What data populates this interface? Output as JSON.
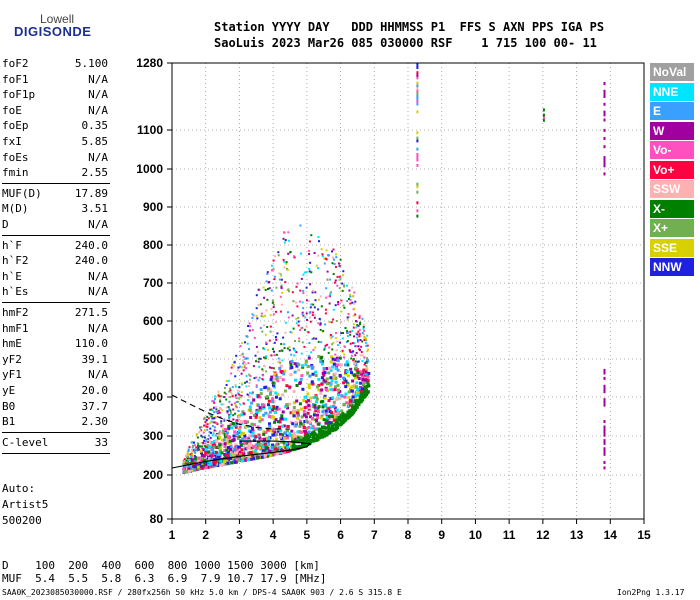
{
  "logo": {
    "line1": "Lowell",
    "line2": "DIGISONDE"
  },
  "header": {
    "line1": "Station YYYY DAY   DDD HHMMSS P1  FFS S AXN PPS IGA PS",
    "line2": "SaoLuis 2023 Mar26 085 030000 RSF    1 715 100 00- 11"
  },
  "params": [
    {
      "name": "foF2",
      "value": "5.100"
    },
    {
      "name": "foF1",
      "value": "N/A"
    },
    {
      "name": "foF1p",
      "value": "N/A"
    },
    {
      "name": "foE",
      "value": "N/A"
    },
    {
      "name": "foEp",
      "value": "0.35"
    },
    {
      "name": "fxI",
      "value": "5.85"
    },
    {
      "name": "foEs",
      "value": "N/A"
    },
    {
      "name": "fmin",
      "value": "2.55"
    },
    {
      "name": "MUF(D)",
      "value": "17.89"
    },
    {
      "name": "M(D)",
      "value": "3.51"
    },
    {
      "name": "D",
      "value": "N/A"
    },
    {
      "name": "h`F",
      "value": "240.0"
    },
    {
      "name": "h`F2",
      "value": "240.0"
    },
    {
      "name": "h`E",
      "value": "N/A"
    },
    {
      "name": "h`Es",
      "value": "N/A"
    },
    {
      "name": "hmF2",
      "value": "271.5"
    },
    {
      "name": "hmF1",
      "value": "N/A"
    },
    {
      "name": "hmE",
      "value": "110.0"
    },
    {
      "name": "yF2",
      "value": "39.1"
    },
    {
      "name": "yF1",
      "value": "N/A"
    },
    {
      "name": "yE",
      "value": "20.0"
    },
    {
      "name": "B0",
      "value": "37.7"
    },
    {
      "name": "B1",
      "value": "2.30"
    },
    {
      "name": "C-level",
      "value": "33"
    }
  ],
  "auto": {
    "line1": "Auto:",
    "line2": "Artist5",
    "line3": "500200"
  },
  "legend": [
    {
      "label": "NoVal",
      "color": "#a0a0a0"
    },
    {
      "label": "NNE",
      "color": "#00e5ff"
    },
    {
      "label": "E",
      "color": "#3aa0ff"
    },
    {
      "label": "W",
      "color": "#a000a0"
    },
    {
      "label": "Vo-",
      "color": "#ff50c0"
    },
    {
      "label": "Vo+",
      "color": "#ff0040"
    },
    {
      "label": "SSW",
      "color": "#ffb0b0"
    },
    {
      "label": "X-",
      "color": "#008000"
    },
    {
      "label": "X+",
      "color": "#70b050"
    },
    {
      "label": "SSE",
      "color": "#d8d000"
    },
    {
      "label": "NNW",
      "color": "#2020e0"
    }
  ],
  "bottom": {
    "d_row": "D    100  200  400  600  800 1000 1500 3000 [km]",
    "muf_row": "MUF  5.4  5.5  5.8  6.3  6.9  7.9 10.7 17.9 [MHz]",
    "file_line": "SAA0K_2023085030000.RSF / 280fx256h 50 kHz 5.0 km / DPS-4 SAA0K 903 / 2.6 S 315.8 E",
    "version": "Ion2Png 1.3.17"
  },
  "chart_data": {
    "type": "scatter",
    "title": "",
    "xlabel": "",
    "ylabel": "",
    "x_ticks": [
      1,
      2,
      3,
      4,
      5,
      6,
      7,
      8,
      9,
      10,
      11,
      12,
      13,
      14,
      15
    ],
    "y_ticks": [
      80,
      200,
      300,
      400,
      500,
      600,
      700,
      800,
      900,
      1000,
      1100,
      1280
    ],
    "xlim": [
      1,
      15
    ],
    "ylim_labels": [
      80,
      1280
    ],
    "grid": true,
    "legend_position": "right",
    "traces": [
      {
        "style": "solid",
        "points": [
          [
            1.0,
            218
          ],
          [
            2.0,
            235
          ],
          [
            3.0,
            248
          ],
          [
            4.0,
            258
          ],
          [
            4.6,
            265
          ],
          [
            5.0,
            272
          ],
          [
            5.1,
            280
          ],
          [
            4.6,
            285
          ],
          [
            4.0,
            287
          ],
          [
            3.0,
            287
          ]
        ]
      },
      {
        "style": "dashed",
        "points": [
          [
            1.0,
            405
          ],
          [
            1.5,
            383
          ],
          [
            2.0,
            362
          ],
          [
            2.5,
            344
          ],
          [
            3.0,
            330
          ],
          [
            3.5,
            322
          ],
          [
            4.0,
            318
          ],
          [
            4.5,
            318
          ]
        ]
      }
    ],
    "cloud_envelope": {
      "freq": [
        1.3,
        1.8,
        2.3,
        2.8,
        3.3,
        3.8,
        4.3,
        4.8,
        5.3,
        5.8,
        6.3,
        6.8
      ],
      "h_low": [
        210,
        220,
        228,
        236,
        244,
        252,
        262,
        275,
        295,
        320,
        360,
        420
      ],
      "h_high": [
        240,
        330,
        420,
        500,
        620,
        760,
        840,
        860,
        840,
        800,
        700,
        560
      ]
    },
    "scatter_columns": [
      {
        "freq": 8.25,
        "h_from": 880,
        "h_to": 1280
      },
      {
        "freq": 12.0,
        "h_from": 1130,
        "h_to": 1160
      },
      {
        "freq": 12.0,
        "h_from": 405,
        "h_to": 415
      },
      {
        "freq": 13.8,
        "h_from": 970,
        "h_to": 1240
      },
      {
        "freq": 13.8,
        "h_from": 215,
        "h_to": 480
      }
    ]
  }
}
